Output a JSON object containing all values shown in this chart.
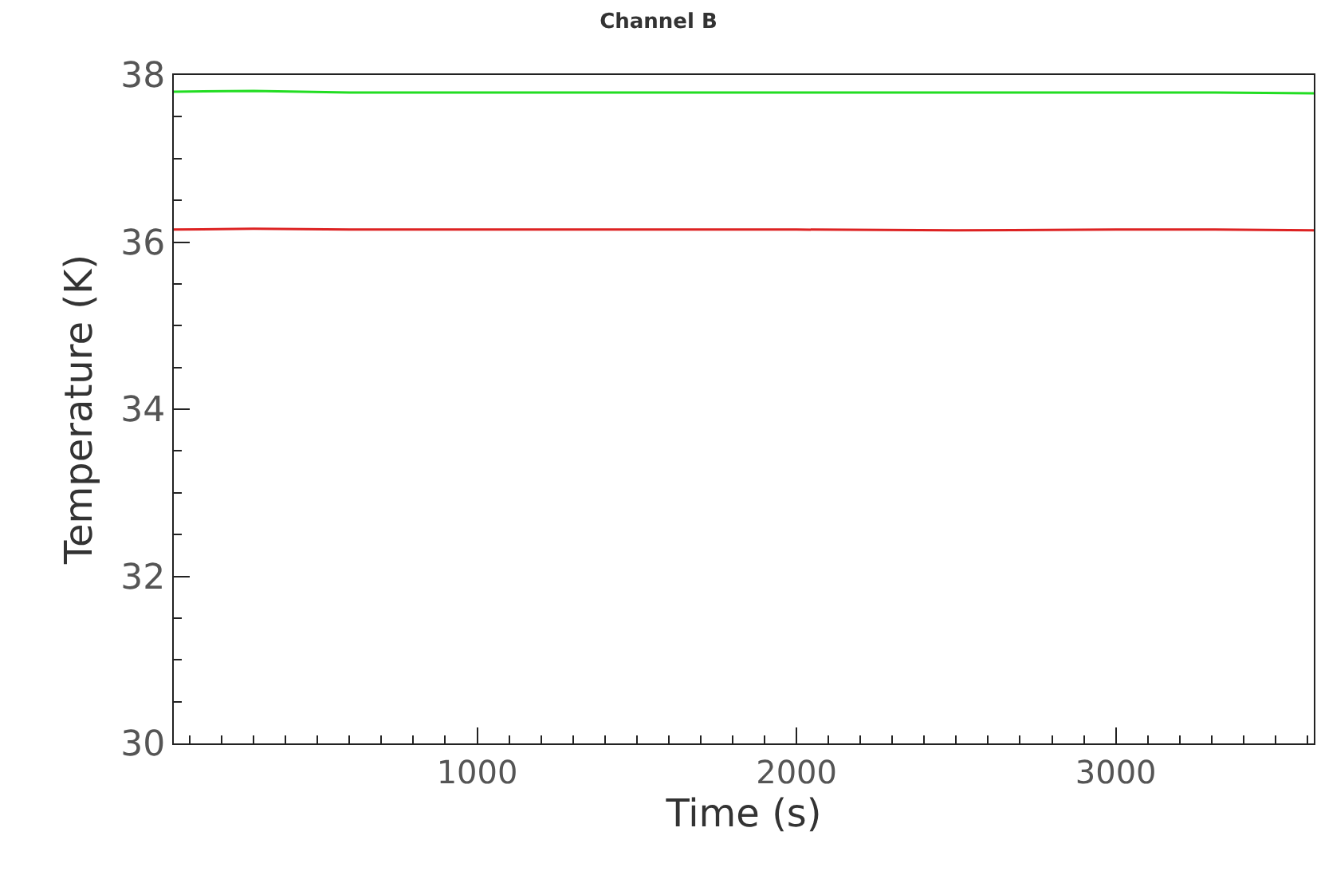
{
  "chart_data": {
    "type": "line",
    "title": "Channel B",
    "xlabel": "Time (s)",
    "ylabel": "Temperature (K)",
    "x": [
      50,
      300,
      600,
      1000,
      1500,
      2000,
      2500,
      3000,
      3300,
      3620
    ],
    "series": [
      {
        "color": "#22dd22",
        "values": [
          37.8,
          37.81,
          37.79,
          37.79,
          37.79,
          37.79,
          37.79,
          37.79,
          37.79,
          37.78
        ]
      },
      {
        "color": "#dd2222",
        "values": [
          36.15,
          36.16,
          36.15,
          36.15,
          36.15,
          36.15,
          36.14,
          36.15,
          36.15,
          36.14
        ]
      }
    ],
    "xlim": [
      50,
      3620
    ],
    "xticks": [
      1000,
      2000,
      3000
    ],
    "ylim": [
      30,
      38
    ],
    "yticks": [
      30,
      32,
      34,
      36,
      38
    ],
    "grid": false,
    "marker": "none",
    "line_style": "solid"
  }
}
